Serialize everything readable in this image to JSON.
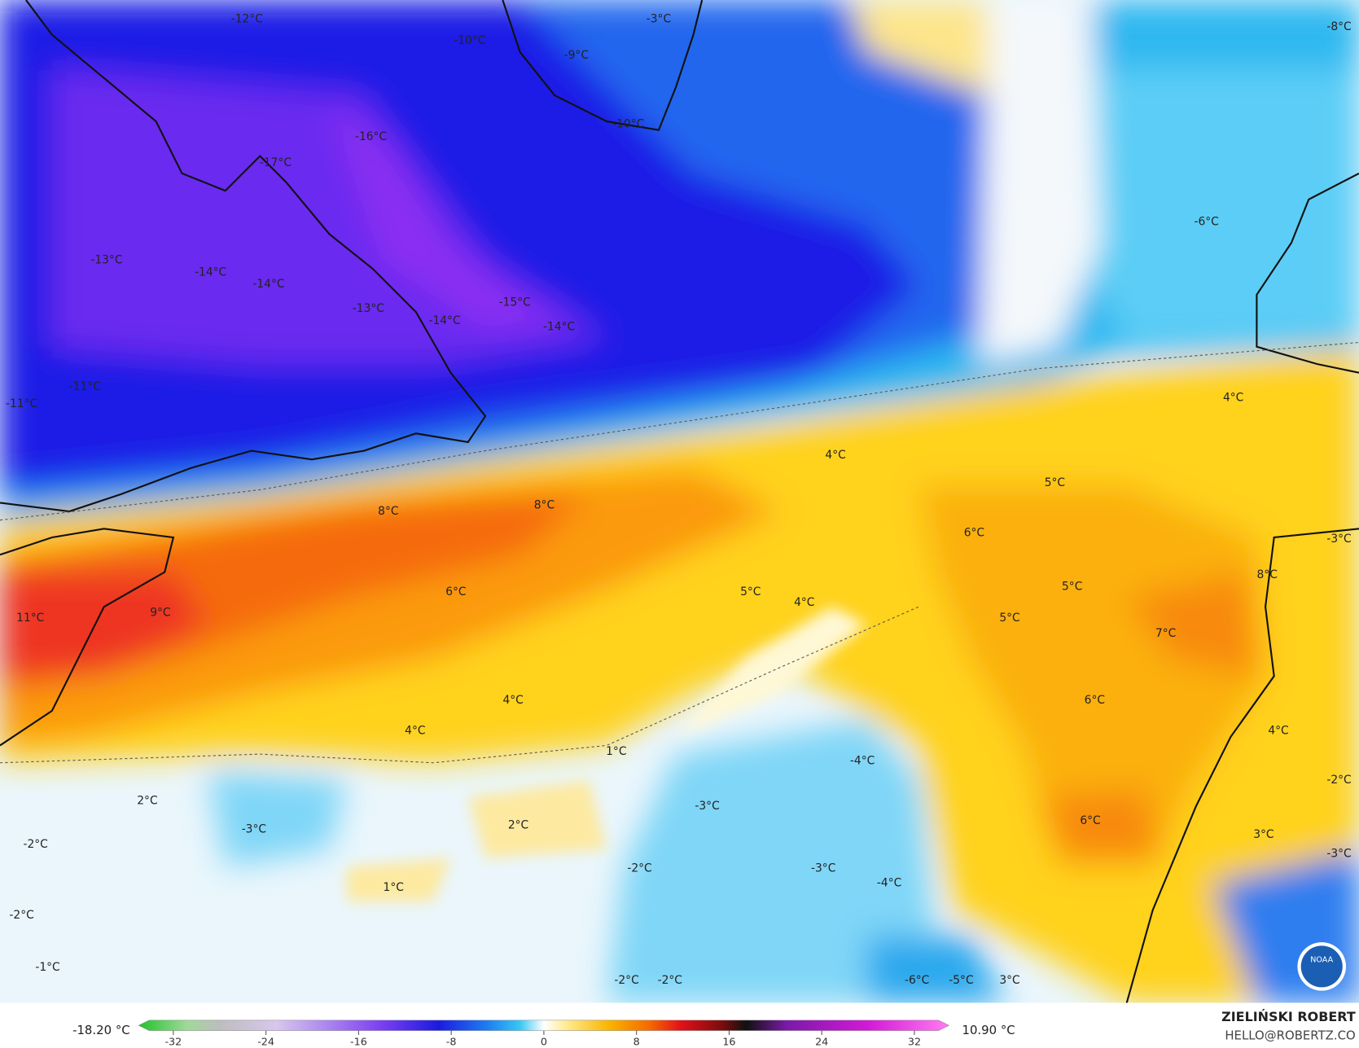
{
  "map": {
    "labels": [
      "-12°C",
      "-10°C",
      "-9°C",
      "-3°C",
      "-8°C",
      "-10°C",
      "-16°C",
      "-17°C",
      "-13°C",
      "-14°C",
      "-14°C",
      "-13°C",
      "-15°C",
      "-14°C",
      "-14°C",
      "-6°C",
      "-11°C",
      "-11°C",
      "4°C",
      "4°C",
      "5°C",
      "8°C",
      "8°C",
      "6°C",
      "6°C",
      "5°C",
      "4°C",
      "5°C",
      "5°C",
      "8°C",
      "-3°C",
      "9°C",
      "11°C",
      "7°C",
      "4°C",
      "6°C",
      "4°C",
      "1°C",
      "4°C",
      "-4°C",
      "2°C",
      "-3°C",
      "-3°C",
      "2°C",
      "6°C",
      "-2°C",
      "3°C",
      "-3°C",
      "-2°C",
      "-2°C",
      "-3°C",
      "-4°C",
      "1°C",
      "-2°C",
      "-1°C",
      "-2°C",
      "-2°C",
      "-6°C",
      "-5°C",
      "3°C"
    ],
    "logo": "NOAA"
  },
  "colorbar": {
    "min_label": "-18.20 °C",
    "max_label": "10.90 °C",
    "ticks": [
      -32,
      -24,
      -16,
      -8,
      0,
      8,
      16,
      24,
      32
    ]
  },
  "credit": {
    "name": "ZIELIŃSKI ROBERT",
    "contact": "HELLO@ROBERTZ.CO"
  }
}
